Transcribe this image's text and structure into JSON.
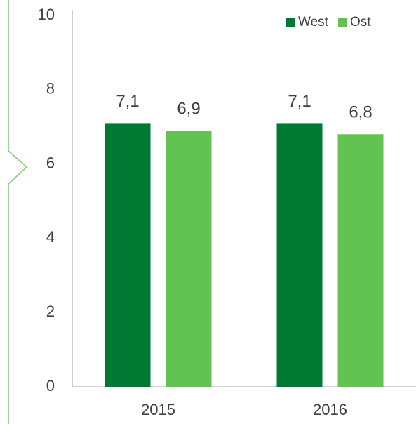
{
  "chart_data": {
    "type": "bar",
    "categories": [
      "2015",
      "2016"
    ],
    "series": [
      {
        "name": "West",
        "color": "#007a33",
        "values": [
          7.1,
          7.1
        ],
        "value_labels": [
          "7,1",
          "7,1"
        ]
      },
      {
        "name": "Ost",
        "color": "#63c352",
        "values": [
          6.9,
          6.8
        ],
        "value_labels": [
          "6,9",
          "6,8"
        ]
      }
    ],
    "ylim": [
      0,
      10
    ],
    "yticks": [
      0,
      2,
      4,
      6,
      8,
      10
    ],
    "grid": false,
    "legend": "top-right"
  }
}
